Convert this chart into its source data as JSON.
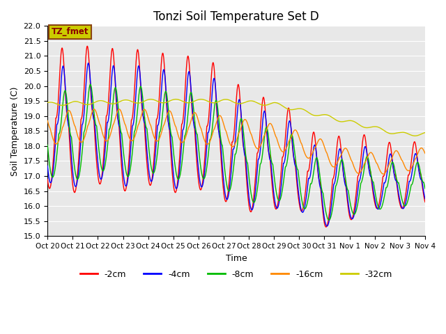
{
  "title": "Tonzi Soil Temperature Set D",
  "xlabel": "Time",
  "ylabel": "Soil Temperature (C)",
  "ylim": [
    15.0,
    22.0
  ],
  "yticks": [
    15.0,
    15.5,
    16.0,
    16.5,
    17.0,
    17.5,
    18.0,
    18.5,
    19.0,
    19.5,
    20.0,
    20.5,
    21.0,
    21.5,
    22.0
  ],
  "legend_labels": [
    "-2cm",
    "-4cm",
    "-8cm",
    "-16cm",
    "-32cm"
  ],
  "legend_colors": [
    "#ff0000",
    "#0000ff",
    "#00bb00",
    "#ff8800",
    "#cccc00"
  ],
  "annotation_text": "TZ_fmet",
  "annotation_bg": "#cccc00",
  "annotation_border": "#8b4513",
  "fig_bg": "#ffffff",
  "plot_bg": "#e8e8e8",
  "grid_color": "#ffffff",
  "title_fontsize": 12
}
